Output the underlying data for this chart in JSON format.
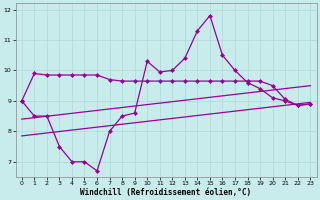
{
  "xlabel": "Windchill (Refroidissement éolien,°C)",
  "xlim": [
    -0.5,
    23.5
  ],
  "ylim": [
    6.5,
    12.2
  ],
  "yticks": [
    7,
    8,
    9,
    10,
    11,
    12
  ],
  "xticks": [
    0,
    1,
    2,
    3,
    4,
    5,
    6,
    7,
    8,
    9,
    10,
    11,
    12,
    13,
    14,
    15,
    16,
    17,
    18,
    19,
    20,
    21,
    22,
    23
  ],
  "background_color": "#c8ecec",
  "line_color": "#990099",
  "grid_color": "#b0d8d8",
  "volatile_line": {
    "x": [
      0,
      1,
      2,
      3,
      4,
      5,
      6,
      7,
      8,
      9,
      10,
      11,
      12,
      13,
      14,
      15,
      16,
      17,
      18,
      19,
      20,
      21,
      22,
      23
    ],
    "y": [
      9.0,
      8.5,
      8.5,
      7.5,
      7.0,
      7.0,
      6.7,
      8.0,
      8.5,
      8.6,
      10.3,
      9.95,
      10.0,
      10.4,
      11.3,
      11.8,
      10.5,
      10.0,
      9.6,
      9.4,
      9.1,
      9.0,
      8.85,
      8.9
    ]
  },
  "flat_line": {
    "x": [
      0,
      1,
      2,
      3,
      4,
      5,
      6,
      7,
      8,
      9,
      10,
      11,
      12,
      13,
      14,
      15,
      16,
      17,
      18,
      19,
      20,
      21,
      22,
      23
    ],
    "y": [
      9.0,
      9.9,
      9.85,
      9.85,
      9.85,
      9.85,
      9.85,
      9.7,
      9.65,
      9.65,
      9.65,
      9.65,
      9.65,
      9.65,
      9.65,
      9.65,
      9.65,
      9.65,
      9.65,
      9.65,
      9.5,
      9.05,
      8.85,
      8.9
    ]
  },
  "reg_upper": {
    "x": [
      0,
      23
    ],
    "y": [
      8.4,
      9.5
    ]
  },
  "reg_lower": {
    "x": [
      0,
      23
    ],
    "y": [
      7.85,
      8.95
    ]
  }
}
